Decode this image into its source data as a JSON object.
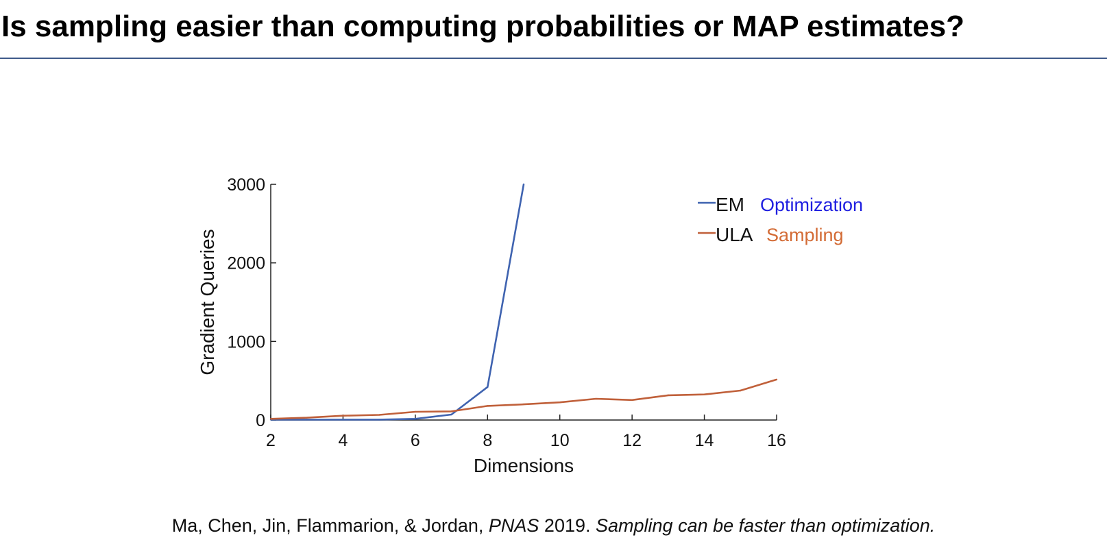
{
  "slide": {
    "title": "Is sampling easier than computing probabilities or MAP estimates?"
  },
  "citation": {
    "authors": "Ma, Chen, Jin, Flammarion, & Jordan, ",
    "journal": "PNAS",
    "year": " 2019. ",
    "paper_title": "Sampling can be faster than optimization."
  },
  "colors": {
    "title_rule": "#3f5a8a",
    "em_line": "#3f63b0",
    "ula_line": "#c0603a",
    "optimization_note": "#1f1fe0",
    "sampling_note": "#d36b35"
  },
  "chart_data": {
    "type": "line",
    "xlabel": "Dimensions",
    "ylabel": "Gradient Queries",
    "xlim": [
      2,
      16
    ],
    "ylim": [
      0,
      3000
    ],
    "xticks": [
      2,
      4,
      6,
      8,
      10,
      12,
      14,
      16
    ],
    "yticks": [
      0,
      1000,
      2000,
      3000
    ],
    "grid": false,
    "legend_position": "top-right",
    "series": [
      {
        "name": "EM",
        "annotation": "Optimization",
        "color": "#3f63b0",
        "x": [
          2,
          3,
          4,
          5,
          6,
          7,
          8,
          9
        ],
        "y": [
          5,
          5,
          5,
          5,
          15,
          70,
          420,
          3000
        ]
      },
      {
        "name": "ULA",
        "annotation": "Sampling",
        "color": "#c0603a",
        "x": [
          2,
          3,
          4,
          5,
          6,
          7,
          8,
          9,
          10,
          11,
          12,
          13,
          14,
          15,
          16
        ],
        "y": [
          15,
          30,
          55,
          65,
          105,
          110,
          180,
          200,
          225,
          270,
          255,
          315,
          325,
          375,
          515
        ]
      }
    ]
  }
}
